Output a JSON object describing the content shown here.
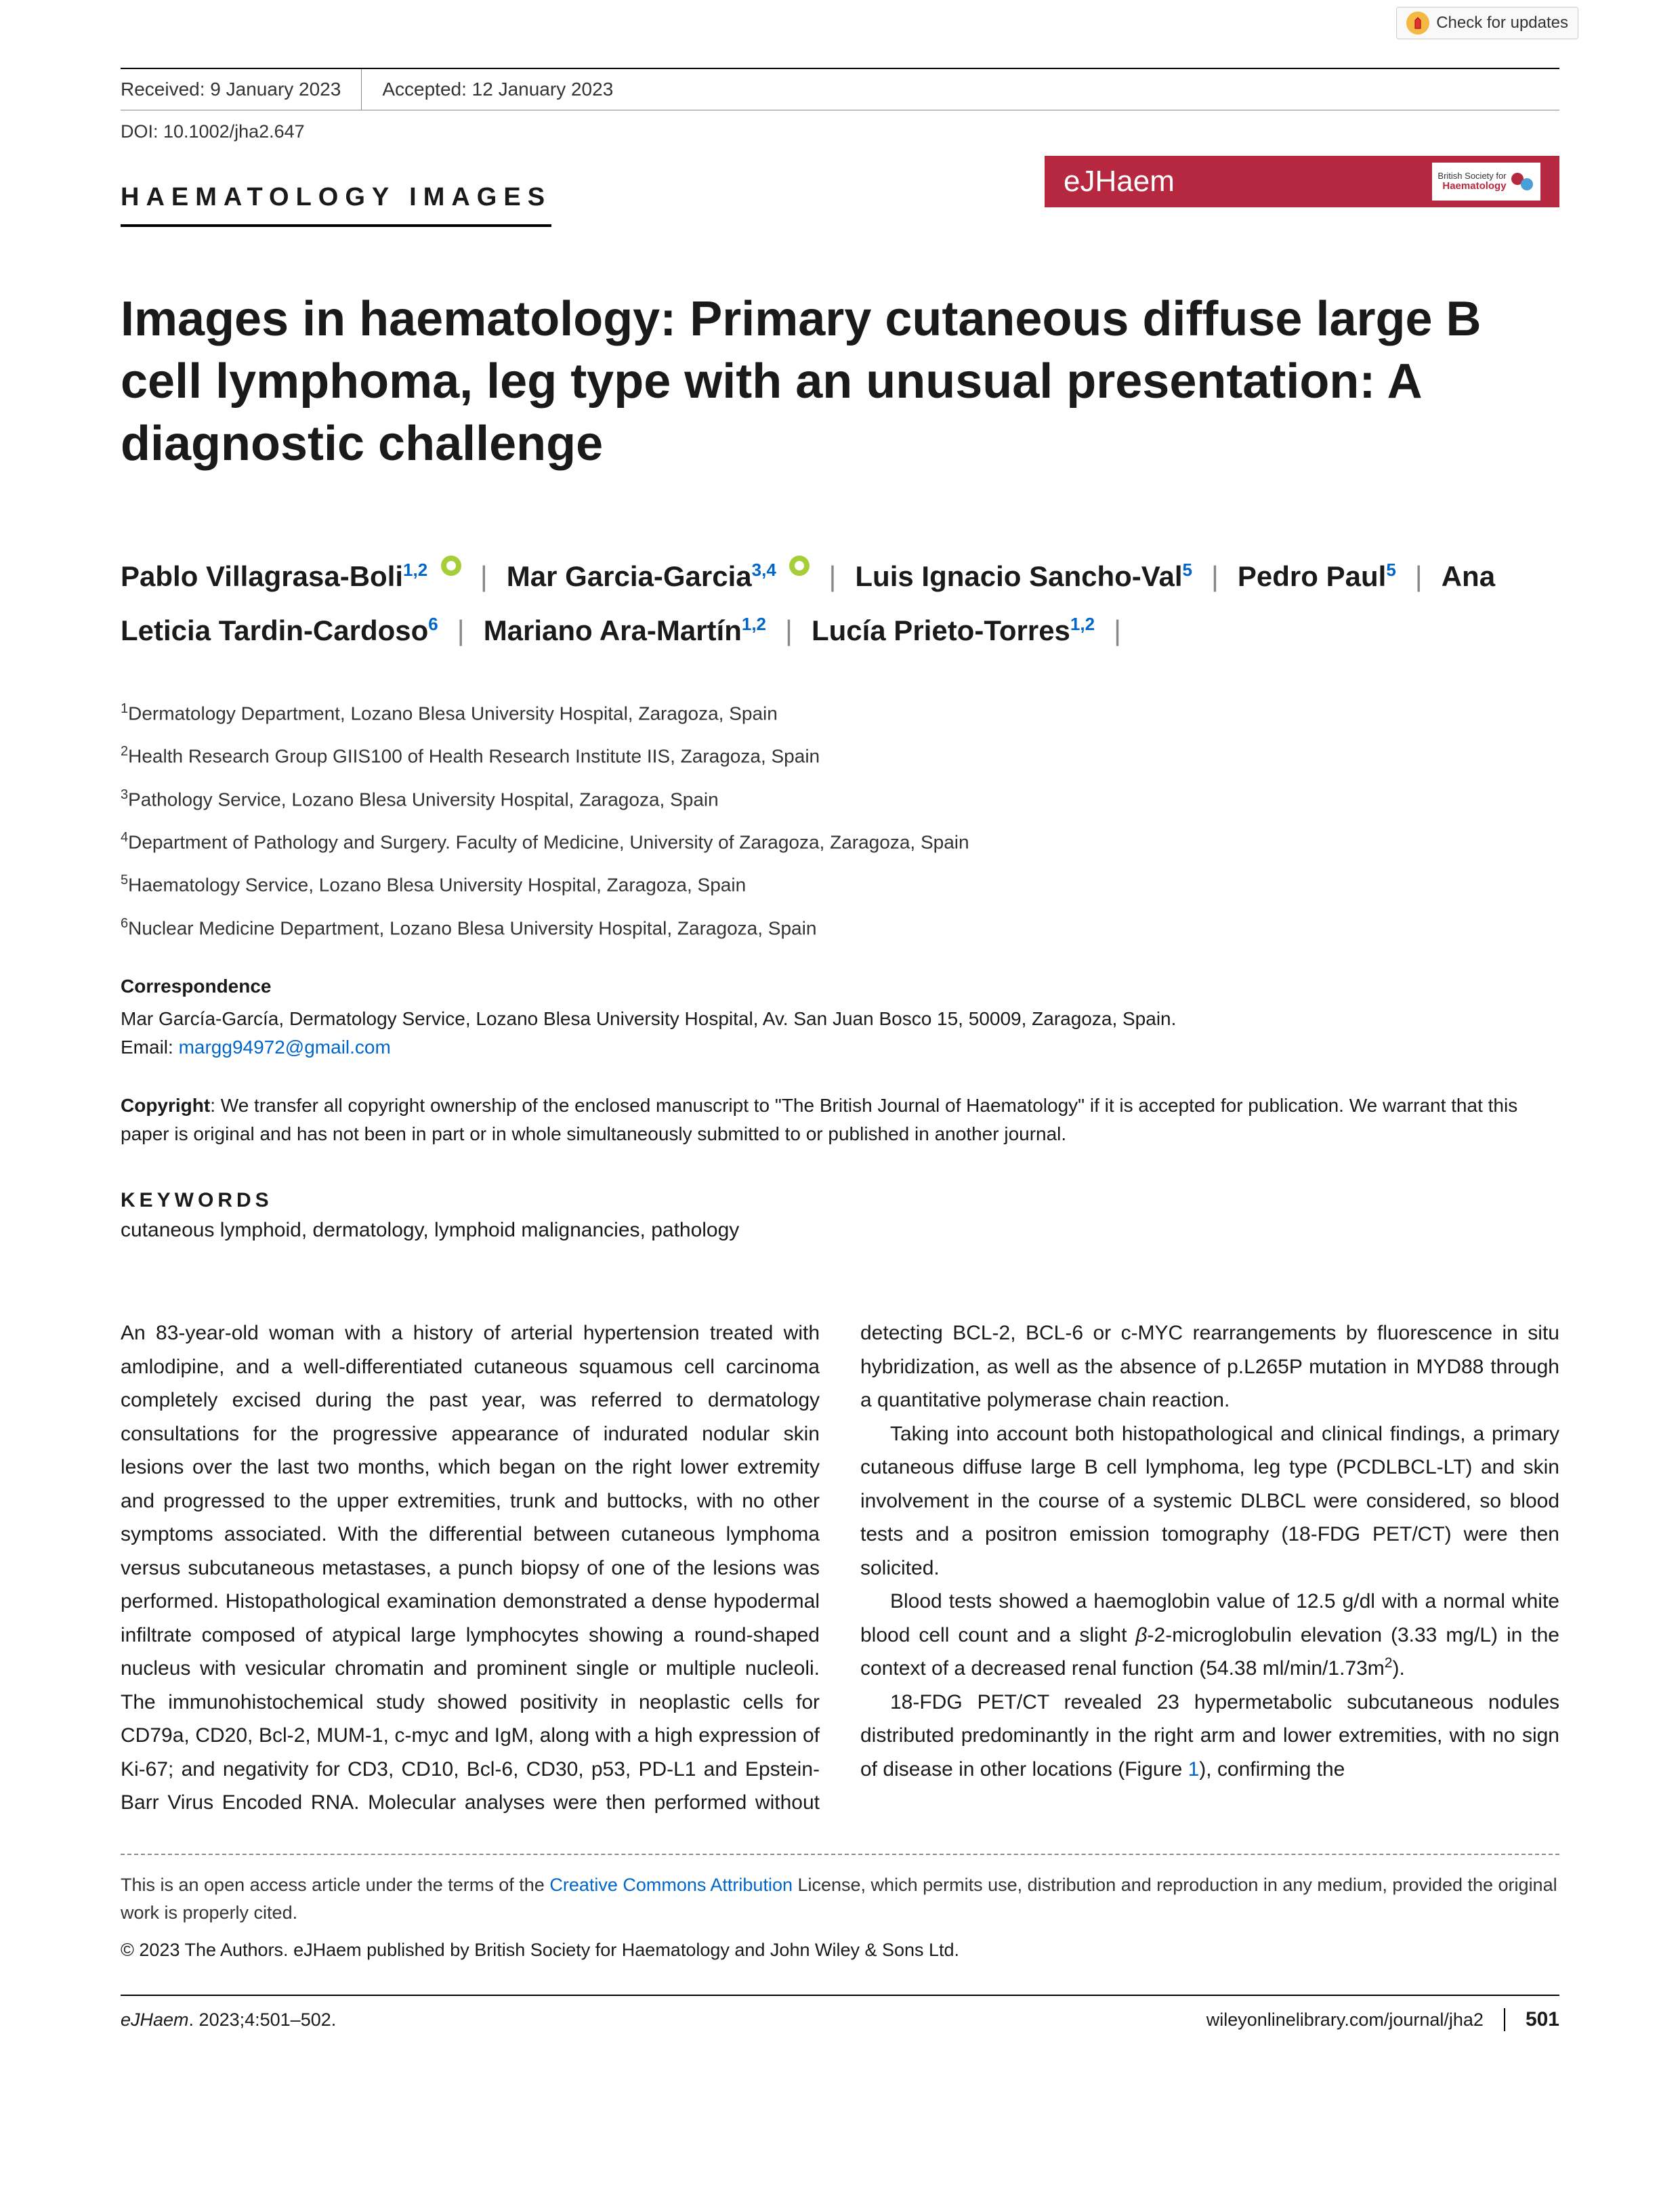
{
  "check_updates": "Check for updates",
  "meta": {
    "received_label": "Received:",
    "received_date": "9 January 2023",
    "accepted_label": "Accepted:",
    "accepted_date": "12 January 2023",
    "doi": "DOI: 10.1002/jha2.647"
  },
  "section_label": "HAEMATOLOGY IMAGES",
  "journal_banner": {
    "name": "eJHaem",
    "society_line1": "British Society for",
    "society_line2": "Haematology"
  },
  "title": "Images in haematology: Primary cutaneous diffuse large B cell lymphoma, leg type with an unusual presentation: A diagnostic challenge",
  "authors": [
    {
      "name": "Pablo Villagrasa-Boli",
      "affs": "1,2",
      "orcid": true
    },
    {
      "name": "Mar Garcia-Garcia",
      "affs": "3,4",
      "orcid": true
    },
    {
      "name": "Luis Ignacio Sancho-Val",
      "affs": "5",
      "orcid": false
    },
    {
      "name": "Pedro Paul",
      "affs": "5",
      "orcid": false
    },
    {
      "name": "Ana Leticia Tardin-Cardoso",
      "affs": "6",
      "orcid": false
    },
    {
      "name": "Mariano Ara-Martín",
      "affs": "1,2",
      "orcid": false
    },
    {
      "name": "Lucía Prieto-Torres",
      "affs": "1,2",
      "orcid": false
    }
  ],
  "affiliations": [
    {
      "num": "1",
      "text": "Dermatology Department, Lozano Blesa University Hospital, Zaragoza, Spain"
    },
    {
      "num": "2",
      "text": "Health Research Group GIIS100 of Health Research Institute IIS, Zaragoza, Spain"
    },
    {
      "num": "3",
      "text": "Pathology Service, Lozano Blesa University Hospital, Zaragoza, Spain"
    },
    {
      "num": "4",
      "text": "Department of Pathology and Surgery. Faculty of Medicine, University of Zaragoza, Zaragoza, Spain"
    },
    {
      "num": "5",
      "text": "Haematology Service, Lozano Blesa University Hospital, Zaragoza, Spain"
    },
    {
      "num": "6",
      "text": "Nuclear Medicine Department, Lozano Blesa University Hospital, Zaragoza, Spain"
    }
  ],
  "correspondence": {
    "label": "Correspondence",
    "text": "Mar García-García, Dermatology Service, Lozano Blesa University Hospital, Av. San Juan Bosco 15, 50009, Zaragoza, Spain.",
    "email_label": "Email:",
    "email": "margg94972@gmail.com"
  },
  "copyright_note_label": "Copyright",
  "copyright_note": ": We transfer all copyright ownership of the enclosed manuscript to \"The British Journal of Haematology\" if it is accepted for publication. We warrant that this paper is original and has not been in part or in whole simultaneously submitted to or published in another journal.",
  "keywords_label": "KEYWORDS",
  "keywords": "cutaneous lymphoid, dermatology, lymphoid malignancies, pathology",
  "body": {
    "p1": "An 83-year-old woman with a history of arterial hypertension treated with amlodipine, and a well-differentiated cutaneous squamous cell carcinoma completely excised during the past year, was referred to dermatology consultations for the progressive appearance of indurated nodular skin lesions over the last two months, which began on the right lower extremity and progressed to the upper extremities, trunk and buttocks, with no other symptoms associated. With the differential between cutaneous lymphoma versus subcutaneous metastases, a punch biopsy of one of the lesions was performed. Histopathological examination demonstrated a dense hypodermal infiltrate composed of atypical large lymphocytes showing a round-shaped nucleus with vesicular chromatin and prominent single or multiple nucleoli. The immunohistochemical study showed positivity in neoplastic cells for CD79a, CD20, Bcl-2, MUM-1, c-myc and IgM, along with a high expression of Ki-67; and negativity for CD3, CD10, Bcl-6, CD30, p53, PD-L1 and Epstein-Barr Virus Encoded RNA. Molecular analyses were then performed without detecting BCL-2, BCL-6 or c-MYC rearrangements by fluorescence in situ hybridization, as well as the absence of p.L265P mutation in MYD88 through a quantitative polymerase chain reaction.",
    "p2": "Taking into account both histopathological and clinical findings, a primary cutaneous diffuse large B cell lymphoma, leg type (PCDLBCL-LT) and skin involvement in the course of a systemic DLBCL were considered, so blood tests and a positron emission tomography (18-FDG PET/CT) were then solicited.",
    "p3a": "Blood tests showed a haemoglobin value of 12.5 g/dl with a normal white blood cell count and a slight ",
    "p3b": "-2-microglobulin elevation (3.33 mg/L) in the context of a decreased renal function (54.38 ml/min/1.73m",
    "p3c": ").",
    "p4a": "18-FDG PET/CT revealed 23 hypermetabolic subcutaneous nodules distributed predominantly in the right arm and lower extremities, with no sign of disease in other locations (Figure ",
    "fig_ref": "1",
    "p4b": "), confirming the"
  },
  "license": {
    "text_a": "This is an open access article under the terms of the ",
    "link": "Creative Commons Attribution",
    "text_b": " License, which permits use, distribution and reproduction in any medium, provided the original work is properly cited."
  },
  "copyright_line": "© 2023 The Authors. eJHaem published by British Society for Haematology and John Wiley & Sons Ltd.",
  "footer": {
    "citation_journal": "eJHaem",
    "citation_rest": ". 2023;4:501–502.",
    "url": "wileyonlinelibrary.com/journal/jha2",
    "page": "501"
  },
  "colors": {
    "banner_bg": "#b5283f",
    "link": "#0066cc",
    "orcid": "#a6ce39",
    "check_badge": "#f4b942"
  }
}
